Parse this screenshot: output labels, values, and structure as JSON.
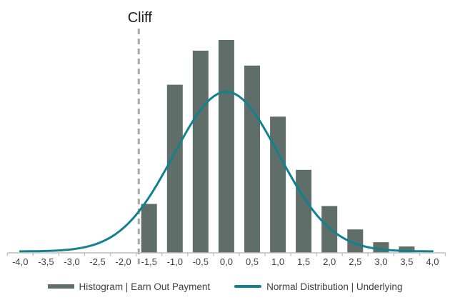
{
  "annotation": {
    "label": "Cliff"
  },
  "legend": {
    "items": [
      {
        "label": "Histogram | Earn Out Payment",
        "swatch": "rect"
      },
      {
        "label": "Normal Distribution | Underlying",
        "swatch": "line"
      }
    ],
    "position": "bottom"
  },
  "colors": {
    "histogram": "#5f6e68",
    "curve": "#12818e",
    "cliff_line": "#a6a6a6",
    "axis": "#bfbfbf",
    "tick_label": "#404040",
    "annotation_text": "#1f1f1f",
    "legend_text": "#404040",
    "background": "#ffffff"
  },
  "chart_data": {
    "type": "bar",
    "subtype": "histogram-with-line-overlay",
    "title": "",
    "xlabel": "",
    "ylabel": "",
    "grid": false,
    "legend_position": "bottom",
    "x_axis": {
      "min": -4.0,
      "max": 4.0,
      "step": 0.5,
      "decimal_separator": ",",
      "ticks_between_categories": true,
      "tick_labels": [
        "-4,0",
        "-3,5",
        "-3,0",
        "-2,5",
        "-2,0",
        "-1,5",
        "-1,0",
        "-0,5",
        "0,0",
        "0,5",
        "1,0",
        "1,5",
        "2,0",
        "2,5",
        "3,0",
        "3,5",
        "4,0"
      ]
    },
    "y_axis": {
      "visible": false,
      "relative_scale_max": 1.0
    },
    "series": [
      {
        "name": "Histogram | Earn Out Payment",
        "type": "bar",
        "bin_centers": [
          -1.5,
          -1.0,
          -0.5,
          0.0,
          0.5,
          1.0,
          1.5,
          2.0,
          2.5,
          3.0,
          3.5
        ],
        "rel_frequencies": [
          0.23,
          0.79,
          0.95,
          1.0,
          0.88,
          0.64,
          0.39,
          0.22,
          0.11,
          0.05,
          0.03
        ]
      },
      {
        "name": "Normal Distribution | Underlying",
        "type": "line",
        "distribution": "normal",
        "mean": 0.0,
        "sigma": 1.02,
        "peak_rel_height": 0.75,
        "x_range": [
          -4.0,
          4.0
        ]
      }
    ],
    "cliff_marker": {
      "label": "Cliff",
      "x": -1.7,
      "style": "dashed-vertical-line"
    }
  }
}
